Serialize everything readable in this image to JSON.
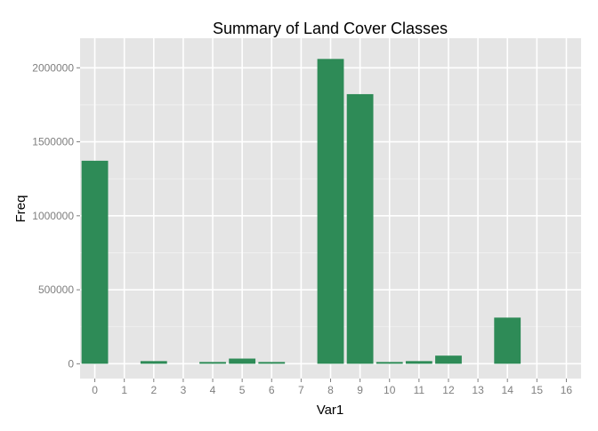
{
  "chart_data": {
    "type": "bar",
    "title": "Summary of Land Cover Classes",
    "xlabel": "Var1",
    "ylabel": "Freq",
    "categories": [
      "0",
      "1",
      "2",
      "3",
      "4",
      "5",
      "6",
      "7",
      "8",
      "9",
      "10",
      "11",
      "12",
      "13",
      "14",
      "15",
      "16"
    ],
    "values": [
      1372000,
      0,
      18000,
      0,
      12000,
      35000,
      12000,
      0,
      2060000,
      1822000,
      12000,
      18000,
      55000,
      0,
      312000,
      0,
      0
    ],
    "yticks": [
      0,
      500000,
      1000000,
      1500000,
      2000000
    ],
    "ytick_labels": [
      "0",
      "500000",
      "1000000",
      "1500000",
      "2000000"
    ],
    "ylim": [
      -100000,
      2200000
    ],
    "grid": true,
    "legend": "none",
    "colors": {
      "bar": "#2E8B57",
      "panel": "#E5E5E5",
      "grid_major": "#FFFFFF",
      "grid_minor": "#F2F2F2",
      "tick_text": "#7F7F7F",
      "title_text": "#000000"
    }
  }
}
